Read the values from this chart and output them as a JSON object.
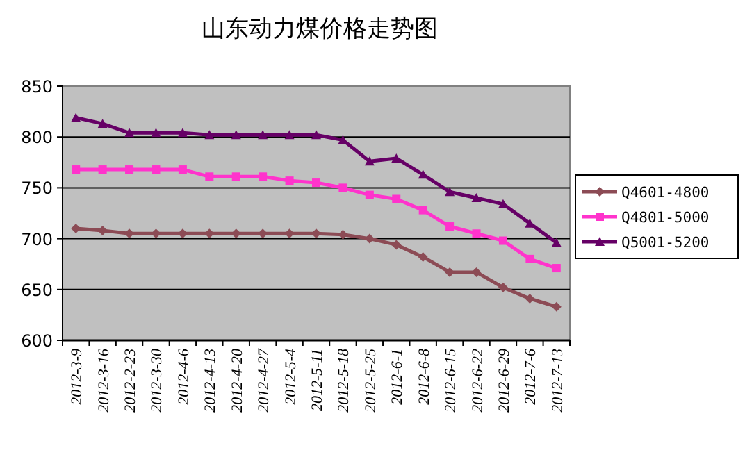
{
  "chart_data": {
    "type": "line",
    "title": "山东动力煤价格走势图",
    "categories": [
      "2012-3-9",
      "2012-3-16",
      "2012-2-23",
      "2012-3-30",
      "2012-4-6",
      "2012-4-13",
      "2012-4-20",
      "2012-4-27",
      "2012-5-4",
      "2012-5-11",
      "2012-5-18",
      "2012-5-25",
      "2012-6-1",
      "2012-6-8",
      "2012-6-15",
      "2012-6-22",
      "2012-6-29",
      "2012-7-6",
      "2012-7-13"
    ],
    "series": [
      {
        "name": "Q4601-4800",
        "color": "#8c4b55",
        "marker": "diamond",
        "values": [
          710,
          708,
          705,
          705,
          705,
          705,
          705,
          705,
          705,
          705,
          704,
          700,
          694,
          682,
          667,
          667,
          652,
          641,
          633
        ]
      },
      {
        "name": "Q4801-5000",
        "color": "#ff33cc",
        "marker": "square",
        "values": [
          768,
          768,
          768,
          768,
          768,
          761,
          761,
          761,
          757,
          755,
          750,
          743,
          739,
          728,
          712,
          705,
          698,
          680,
          671
        ]
      },
      {
        "name": "Q5001-5200",
        "color": "#660066",
        "marker": "triangle",
        "values": [
          819,
          813,
          804,
          804,
          804,
          802,
          802,
          802,
          802,
          802,
          797,
          776,
          779,
          763,
          746,
          740,
          734,
          715,
          696
        ]
      }
    ],
    "ylim": [
      600,
      850
    ],
    "yticks": [
      600,
      650,
      700,
      750,
      800,
      850
    ],
    "grid": "y",
    "legend": "right"
  }
}
